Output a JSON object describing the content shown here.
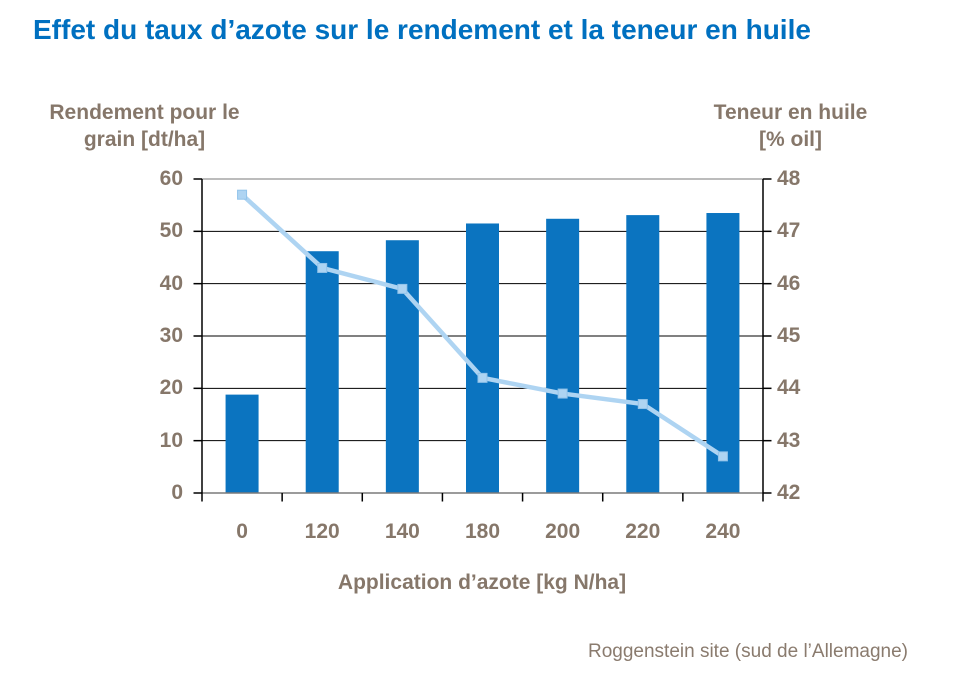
{
  "title": "Effet du taux d’azote sur le rendement et la teneur en huile",
  "left_axis": {
    "title_line1": "Rendement pour le",
    "title_line2": "grain [dt/ha]"
  },
  "right_axis": {
    "title_line1": "Teneur en huile",
    "title_line2": "[% oil]"
  },
  "x_axis": {
    "title": "Application d’azote [kg N/ha]"
  },
  "footer": "Roggenstein site (sud de l’Allemagne)",
  "colors": {
    "title_text": "#0070c0",
    "axis_text": "#86776a",
    "footer_text": "#8a7b6e",
    "bar_fill": "#0b74c0",
    "line_stroke": "#aed4f2",
    "marker_fill": "#aed4f2",
    "marker_stroke": "#91c3ea",
    "gridline": "#000000",
    "plot_top_border": "#a6a6a6",
    "axis_line": "#000000",
    "bottom_axis_line": "#7a7a7a"
  },
  "chart_data": {
    "type": "combo",
    "title": "Effet du taux d’azote sur le rendement et la teneur en huile",
    "categories": [
      "0",
      "120",
      "140",
      "180",
      "200",
      "220",
      "240"
    ],
    "series": [
      {
        "name": "Rendement pour le grain [dt/ha]",
        "type": "bar",
        "axis": "left",
        "values": [
          18.8,
          46.2,
          48.3,
          51.5,
          52.4,
          53.1,
          53.5
        ]
      },
      {
        "name": "Teneur en huile [% oil]",
        "type": "line",
        "axis": "right",
        "values": [
          47.7,
          46.3,
          45.9,
          44.2,
          43.9,
          43.7,
          42.7
        ]
      }
    ],
    "left_axis": {
      "label": "Rendement pour le grain [dt/ha]",
      "min": 0,
      "max": 60,
      "tick_step": 10,
      "ticks": [
        0,
        10,
        20,
        30,
        40,
        50,
        60
      ]
    },
    "right_axis": {
      "label": "Teneur en huile [% oil]",
      "min": 42,
      "max": 48,
      "tick_step": 1,
      "ticks": [
        42,
        43,
        44,
        45,
        46,
        47,
        48
      ]
    },
    "xlabel": "Application d’azote [kg N/ha]",
    "annotation": "Roggenstein site (sud de l’Allemagne)",
    "grid": true,
    "legend": false
  }
}
